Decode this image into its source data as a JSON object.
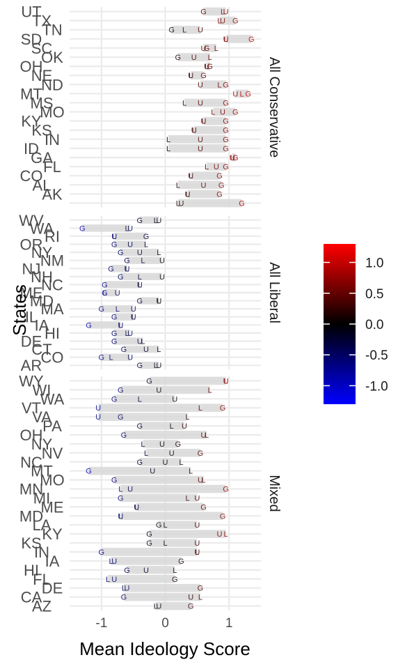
{
  "chart_data": {
    "type": "scatter",
    "xlabel": "Mean Ideology Score",
    "ylabel": "States",
    "xlim": [
      -1.5,
      1.5
    ],
    "x_ticks": [
      -1,
      0,
      1
    ],
    "x_tick_labels": [
      "-1",
      "0",
      "1"
    ],
    "marker_letters": [
      "G",
      "L",
      "U"
    ],
    "color_scale": {
      "low": "#0000ff",
      "mid": "#000000",
      "high": "#ff0000",
      "ticks": [
        1.0,
        0.5,
        0.0,
        -0.5,
        -1.0
      ],
      "tick_labels": [
        "1.0",
        "0.5",
        "0.0",
        "-0.5",
        "-1.0"
      ],
      "limits": [
        -1.3,
        1.3
      ]
    },
    "grid": true,
    "panels": [
      {
        "name": "All Conservative",
        "rows": [
          {
            "state": "UT",
            "G": 0.6,
            "L": 0.9,
            "U": 0.95
          },
          {
            "state": "TX",
            "G": 1.1,
            "L": 0.85,
            "U": 0.9
          },
          {
            "state": "TN",
            "G": 0.1,
            "L": 0.3,
            "U": 0.55
          },
          {
            "state": "SD",
            "G": 1.35,
            "L": 0.95,
            "U": 0.95
          },
          {
            "state": "SC",
            "G": 0.65,
            "L": 0.8,
            "U": 0.6
          },
          {
            "state": "OK",
            "G": 0.2,
            "L": 0.7,
            "U": 0.45
          },
          {
            "state": "OH",
            "G": 0.7,
            "L": 0.65,
            "U": 0.65
          },
          {
            "state": "NE",
            "G": 0.6,
            "L": 0.4,
            "U": 0.4
          },
          {
            "state": "ND",
            "G": 0.95,
            "L": 0.85,
            "U": 0.55
          },
          {
            "state": "MT",
            "G": 1.3,
            "L": 1.2,
            "U": 1.1
          },
          {
            "state": "MS",
            "G": 0.95,
            "L": 0.3,
            "U": 0.55
          },
          {
            "state": "MO",
            "G": 1.1,
            "L": 0.75,
            "U": 0.9
          },
          {
            "state": "KY",
            "G": 0.95,
            "L": 0.6,
            "U": 0.6
          },
          {
            "state": "KS",
            "G": 0.95,
            "L": 0.45,
            "U": 0.45
          },
          {
            "state": "IN",
            "G": 0.95,
            "L": 0.05,
            "U": 0.55
          },
          {
            "state": "ID",
            "G": 0.95,
            "L": 0.05,
            "U": 0.55
          },
          {
            "state": "GA",
            "G": 1.1,
            "L": 1.05,
            "U": 1.05
          },
          {
            "state": "FL",
            "G": 0.95,
            "L": 0.65,
            "U": 0.8
          },
          {
            "state": "CO",
            "G": 0.85,
            "L": 0.4,
            "U": 0.4
          },
          {
            "state": "AL",
            "G": 0.88,
            "L": 0.2,
            "U": 0.6
          },
          {
            "state": "AK",
            "G": 0.85,
            "L": 0.35,
            "U": 0.35
          },
          {
            "state": "",
            "G": 1.2,
            "L": 0.2,
            "U": 0.25
          }
        ]
      },
      {
        "name": "All Liberal",
        "rows": [
          {
            "state": "WV",
            "G": -0.4,
            "L": -0.15,
            "U": -0.1
          },
          {
            "state": "WA",
            "G": -1.3,
            "L": -0.6,
            "U": -0.55
          },
          {
            "state": "RI",
            "G": -0.3,
            "L": -0.8,
            "U": -0.8
          },
          {
            "state": "OR",
            "G": -0.8,
            "L": -0.3,
            "U": -0.55
          },
          {
            "state": "NY",
            "G": -0.7,
            "L": -0.1,
            "U": -0.4
          },
          {
            "state": "NM",
            "G": -0.6,
            "L": -0.35,
            "U": -0.05
          },
          {
            "state": "NJ",
            "G": -0.85,
            "L": -0.6,
            "U": -0.6
          },
          {
            "state": "NH",
            "G": -0.7,
            "L": -0.4,
            "U": -0.05
          },
          {
            "state": "NC",
            "G": -0.95,
            "L": -0.4,
            "U": -0.4
          },
          {
            "state": "ME",
            "G": -0.95,
            "L": -0.95,
            "U": -0.75
          },
          {
            "state": "MD",
            "G": -0.4,
            "L": -0.1,
            "U": -0.1
          },
          {
            "state": "MA",
            "G": -1.0,
            "L": -0.75,
            "U": -0.5
          },
          {
            "state": "IL",
            "G": -0.8,
            "L": -0.5,
            "U": -0.5
          },
          {
            "state": "IA",
            "G": -1.2,
            "L": -0.7,
            "U": -0.7
          },
          {
            "state": "HI",
            "G": -0.8,
            "L": -0.6,
            "U": -0.55
          },
          {
            "state": "DE",
            "G": -0.8,
            "L": -0.35,
            "U": -0.4
          },
          {
            "state": "CT",
            "G": -0.65,
            "L": -0.1,
            "U": -0.3
          },
          {
            "state": "CO",
            "G": -1.0,
            "L": -0.85,
            "U": -0.55
          },
          {
            "state": "AR",
            "G": -0.4,
            "L": -0.15,
            "U": -0.1
          }
        ]
      },
      {
        "name": "Mixed",
        "rows": [
          {
            "state": "WY",
            "G": -0.25,
            "L": 0.95,
            "U": 0.95
          },
          {
            "state": "WI",
            "G": -0.7,
            "L": 0.7,
            "U": -0.1
          },
          {
            "state": "WA",
            "G": -0.8,
            "L": -0.4,
            "U": 0.15
          },
          {
            "state": "VT",
            "G": 0.9,
            "L": 0.55,
            "U": -1.05
          },
          {
            "state": "VA",
            "G": -0.7,
            "L": 0.35,
            "U": -1.05
          },
          {
            "state": "PA",
            "G": -0.4,
            "L": 0.1,
            "U": 0.3
          },
          {
            "state": "OH",
            "G": -0.65,
            "L": 0.65,
            "U": 0.6
          },
          {
            "state": "NY",
            "G": 0.2,
            "L": -0.35,
            "U": -0.05
          },
          {
            "state": "NV",
            "G": 0.55,
            "L": -0.3,
            "U": 0.1
          },
          {
            "state": "NC",
            "G": -0.4,
            "L": 0.25,
            "U": 0.0
          },
          {
            "state": "MT",
            "G": -1.2,
            "L": 0.4,
            "U": -0.2
          },
          {
            "state": "MO",
            "G": -0.8,
            "L": 0.6,
            "U": 0.55
          },
          {
            "state": "MN",
            "G": 0.95,
            "L": -0.7,
            "U": -0.55
          },
          {
            "state": "MI",
            "G": -0.7,
            "L": 0.35,
            "U": 0.5
          },
          {
            "state": "ME",
            "G": 0.6,
            "L": -0.45,
            "U": -0.45
          },
          {
            "state": "MD",
            "G": 0.9,
            "L": -0.7,
            "U": -0.7
          },
          {
            "state": "LA",
            "G": -0.1,
            "L": 0.0,
            "U": 0.5
          },
          {
            "state": "KY",
            "G": -0.25,
            "L": 0.95,
            "U": 0.85
          },
          {
            "state": "KS",
            "G": -0.25,
            "L": 0.0,
            "U": 0.5
          },
          {
            "state": "IN",
            "G": -1.0,
            "L": 0.5,
            "U": 0.5
          },
          {
            "state": "IA",
            "G": 0.25,
            "L": -0.85,
            "U": -0.8
          },
          {
            "state": "HI",
            "G": -0.6,
            "L": 0.15,
            "U": -0.3
          },
          {
            "state": "FL",
            "G": 0.15,
            "L": -0.9,
            "U": -0.8
          },
          {
            "state": "DE",
            "G": 0.55,
            "L": -0.65,
            "U": -0.6
          },
          {
            "state": "CA",
            "G": -0.65,
            "L": 0.55,
            "U": 0.4
          },
          {
            "state": "AZ",
            "G": 0.4,
            "L": -0.15,
            "U": -0.1
          }
        ]
      }
    ],
    "visible_state_labels": [
      "UT",
      "TX",
      "TN",
      "SD",
      "SC",
      "OK",
      "OH",
      "NE",
      "ND",
      "MT",
      "MS",
      "MO",
      "KY",
      "KS",
      "IN",
      "ID",
      "GA",
      "FL",
      "CO",
      "AL",
      "AK",
      "WV",
      "WA",
      "RI",
      "OR",
      "NY",
      "NM",
      "NJ",
      "NH",
      "NC",
      "ME",
      "MD",
      "MA",
      "IL",
      "IA",
      "HI",
      "DE",
      "CT",
      "CO",
      "AR",
      "WY",
      "WI",
      "WA",
      "VT",
      "VA",
      "PA",
      "OH",
      "NY",
      "NV",
      "NC",
      "MT",
      "MO",
      "MN",
      "MI",
      "ME",
      "MD",
      "LA",
      "KY",
      "KS",
      "IN",
      "IA",
      "HI",
      "FL",
      "DE",
      "CA",
      "AZ",
      "AR"
    ]
  }
}
